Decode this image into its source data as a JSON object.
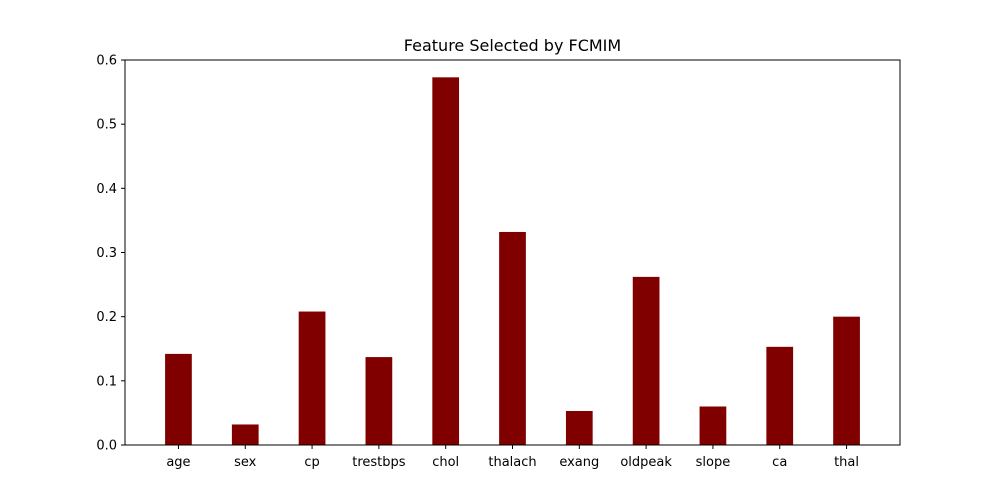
{
  "chart_data": {
    "type": "bar",
    "title": "Feature Selected by FCMIM",
    "xlabel": "",
    "ylabel": "",
    "categories": [
      "age",
      "sex",
      "cp",
      "trestbps",
      "chol",
      "thalach",
      "exang",
      "oldpeak",
      "slope",
      "ca",
      "thal"
    ],
    "values": [
      0.142,
      0.032,
      0.208,
      0.137,
      0.573,
      0.332,
      0.053,
      0.262,
      0.06,
      0.153,
      0.2
    ],
    "ylim": [
      0,
      0.6
    ],
    "yticks": [
      0.0,
      0.1,
      0.2,
      0.3,
      0.4,
      0.5,
      0.6
    ],
    "ytick_labels": [
      "0.0",
      "0.1",
      "0.2",
      "0.3",
      "0.4",
      "0.5",
      "0.6"
    ],
    "bar_color": "#800000",
    "grid": false,
    "legend": "none"
  }
}
